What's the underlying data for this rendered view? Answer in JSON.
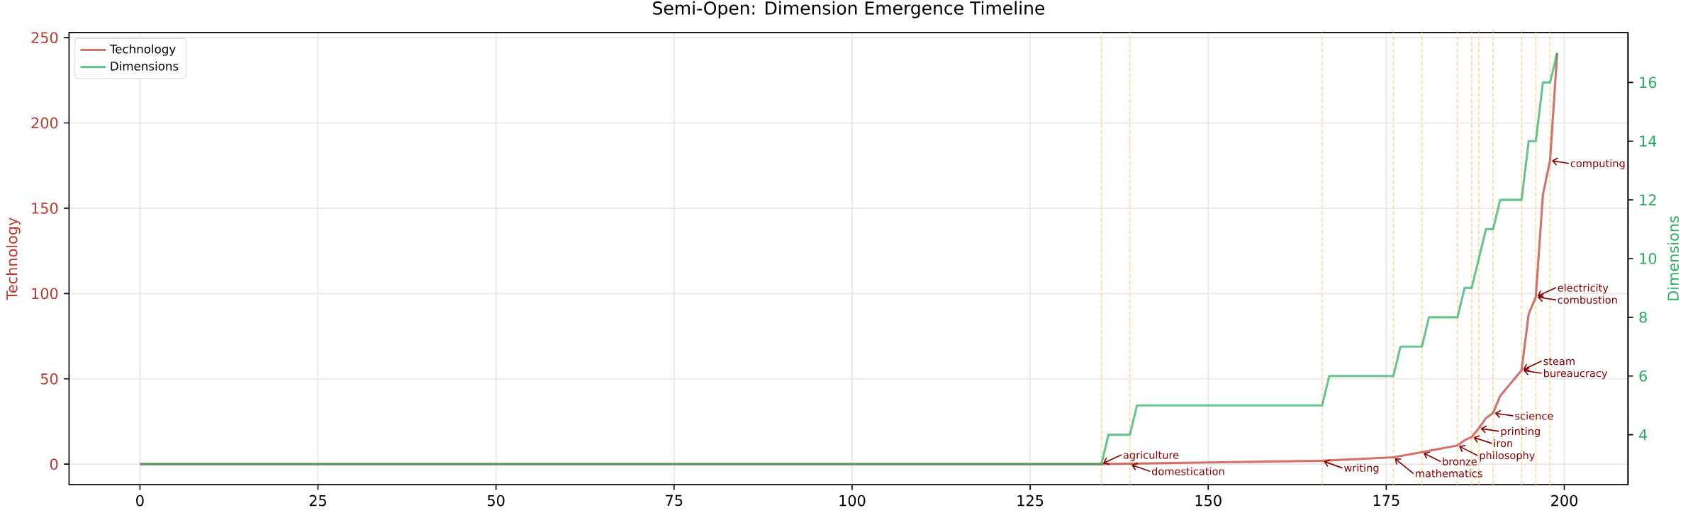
{
  "chart_data": {
    "type": "line",
    "title": "Semi-Open: Dimension Emergence Timeline",
    "ylabel": "Technology",
    "y2label": "Dimensions",
    "series": [
      {
        "name": "Technology",
        "color": "#d3746b",
        "x": [
          0,
          135,
          150,
          166,
          176,
          180,
          185,
          186,
          187,
          188,
          189,
          190,
          191,
          192,
          193,
          194,
          195,
          196,
          197,
          198,
          199
        ],
        "values": [
          0,
          0,
          1,
          2,
          4,
          7,
          11,
          14,
          16,
          21,
          27,
          30,
          40,
          45,
          50,
          55,
          88,
          98,
          158,
          178,
          241
        ]
      },
      {
        "name": "Dimensions",
        "color": "#68c690",
        "axis": "y2",
        "x": [
          0,
          135,
          136,
          139,
          140,
          166,
          167,
          176,
          177,
          180,
          181,
          185,
          186,
          187,
          188,
          189,
          190,
          191,
          194,
          195,
          196,
          197,
          198,
          199
        ],
        "values": [
          3,
          3,
          4,
          4,
          5,
          5,
          6,
          6,
          7,
          7,
          8,
          8,
          9,
          9,
          10,
          11,
          11,
          12,
          12,
          14,
          14,
          16,
          16,
          17
        ]
      }
    ],
    "xlim": [
      -9.95,
      208.95
    ],
    "xticks": [
      0,
      25,
      50,
      75,
      100,
      125,
      150,
      175,
      200
    ],
    "ylim": [
      -12,
      253
    ],
    "yticks": [
      0,
      50,
      100,
      150,
      200,
      250
    ],
    "y2lim": [
      2.3,
      17.7
    ],
    "y2ticks": [
      4,
      6,
      8,
      10,
      12,
      14,
      16
    ],
    "grid": true,
    "legend": "top left",
    "ref_lines": [
      {
        "axis": "x",
        "value": 135,
        "color": "#ffdb99",
        "line_style": "dashed"
      },
      {
        "axis": "x",
        "value": 139,
        "color": "#ffdb99",
        "line_style": "dashed"
      },
      {
        "axis": "x",
        "value": 166,
        "color": "#ffdb99",
        "line_style": "dashed"
      },
      {
        "axis": "x",
        "value": 176,
        "color": "#ffdb99",
        "line_style": "dashed"
      },
      {
        "axis": "x",
        "value": 180,
        "color": "#ffdb99",
        "line_style": "dashed"
      },
      {
        "axis": "x",
        "value": 185,
        "color": "#ffdb99",
        "line_style": "dashed"
      },
      {
        "axis": "x",
        "value": 187,
        "color": "#ffdb99",
        "line_style": "dashed"
      },
      {
        "axis": "x",
        "value": 188,
        "color": "#ffdb99",
        "line_style": "dashed"
      },
      {
        "axis": "x",
        "value": 190,
        "color": "#ffdb99",
        "line_style": "dashed"
      },
      {
        "axis": "x",
        "value": 194,
        "color": "#ffdb99",
        "line_style": "dashed"
      },
      {
        "axis": "x",
        "value": 196,
        "color": "#ffdb99",
        "line_style": "dashed"
      },
      {
        "axis": "x",
        "value": 198,
        "color": "#ffdb99",
        "line_style": "dashed"
      }
    ],
    "annotations": [
      {
        "text": "agriculture",
        "x": 135,
        "y": 0
      },
      {
        "text": "domestication",
        "x": 139,
        "y": 0
      },
      {
        "text": "writing",
        "x": 166,
        "y": 2
      },
      {
        "text": "mathematics",
        "x": 176,
        "y": 4
      },
      {
        "text": "bronze",
        "x": 180,
        "y": 7
      },
      {
        "text": "philosophy",
        "x": 185,
        "y": 11
      },
      {
        "text": "iron",
        "x": 187,
        "y": 16
      },
      {
        "text": "printing",
        "x": 188,
        "y": 21
      },
      {
        "text": "science",
        "x": 190,
        "y": 30
      },
      {
        "text": "steam",
        "x": 194,
        "y": 55
      },
      {
        "text": "bureaucracy",
        "x": 194,
        "y": 55
      },
      {
        "text": "electricity",
        "x": 196,
        "y": 98
      },
      {
        "text": "combustion",
        "x": 196,
        "y": 98
      },
      {
        "text": "computing",
        "x": 198,
        "y": 178
      }
    ]
  }
}
